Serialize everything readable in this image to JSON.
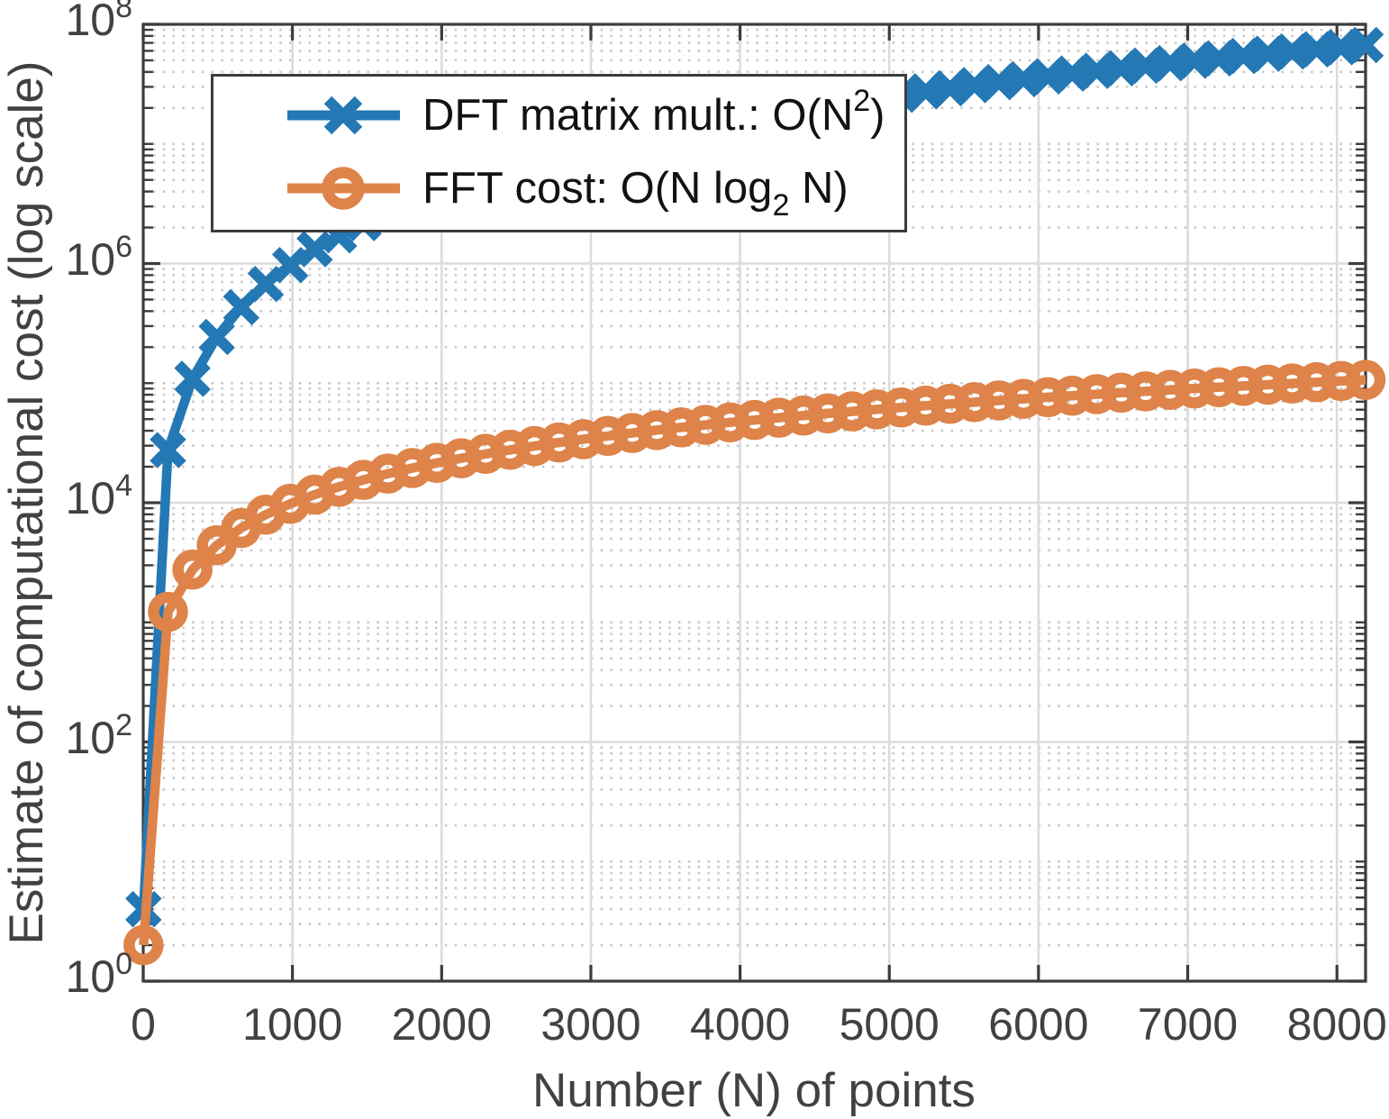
{
  "colors": {
    "dft_blue": "#2478B4",
    "fft_orange": "#DE8349",
    "axis_frame": "#3C3C3C",
    "tick_label": "#414141",
    "grid_major": "#DBDBDB",
    "grid_minor": "#C9C9C9",
    "legend_text": "#121212",
    "background": "#FFFFFF"
  },
  "axes": {
    "xlabel": "Number (N) of points",
    "ylabel": "Estimate of computational cost (log scale)",
    "x_tick_labels": [
      "0",
      "1000",
      "2000",
      "3000",
      "4000",
      "5000",
      "6000",
      "7000",
      "8000"
    ],
    "x_tick_values": [
      0,
      1000,
      2000,
      3000,
      4000,
      5000,
      6000,
      7000,
      8000
    ],
    "y_tick_base": "10",
    "y_tick_exponents": [
      "0",
      "2",
      "4",
      "6",
      "8"
    ],
    "xlim": [
      0,
      8192
    ],
    "ylim_log10": [
      0,
      8
    ],
    "y_scale": "log"
  },
  "legend": {
    "items": [
      {
        "id": "dft",
        "marker": "x",
        "label_pre": "DFT matrix mult.: O(N",
        "label_sup": "2",
        "label_post": ")"
      },
      {
        "id": "fft",
        "marker": "o",
        "label_pre": "FFT cost: O(N log",
        "label_sub": "2",
        "label_post": " N)"
      }
    ]
  },
  "chart_data": {
    "type": "line",
    "title": "",
    "xlabel": "Number (N) of points",
    "ylabel": "Estimate of computational cost (log scale)",
    "x_range": [
      0,
      8192
    ],
    "y_range": [
      1,
      100000000
    ],
    "y_scale": "log",
    "grid": "major solid, log minor dotted",
    "legend_position": "upper-left inside",
    "x": [
      2,
      166,
      330,
      493,
      657,
      821,
      985,
      1149,
      1312,
      1476,
      1640,
      1804,
      1968,
      2131,
      2295,
      2459,
      2623,
      2787,
      2950,
      3114,
      3278,
      3442,
      3606,
      3769,
      3933,
      4097,
      4261,
      4425,
      4588,
      4752,
      4916,
      5080,
      5244,
      5407,
      5571,
      5735,
      5899,
      6063,
      6226,
      6390,
      6554,
      6718,
      6882,
      7045,
      7209,
      7373,
      7537,
      7700,
      7864,
      8028,
      8192
    ],
    "series": [
      {
        "name": "DFT matrix mult.: O(N2)",
        "marker": "x",
        "color": "#2478B4",
        "values": [
          4,
          27556,
          108900,
          243049,
          431649,
          674041,
          970225,
          1320201,
          1721344,
          2178576,
          2689600,
          3254416,
          3873024,
          4541161,
          5267025,
          6046681,
          6880129,
          7767369,
          8702500,
          9696996,
          10745284,
          11847364,
          13003236,
          14205361,
          15468489,
          16785409,
          18156121,
          19580625,
          21049744,
          22581504,
          24167056,
          25806400,
          27499536,
          29235649,
          31036041,
          32890225,
          34798201,
          36759969,
          38763076,
          40832100,
          42954916,
          45131524,
          47361924,
          49632025,
          51969681,
          54361129,
          56806369,
          59290000,
          61842496,
          64448784,
          67108864
        ]
      },
      {
        "name": "FFT cost: O(N log2 N)",
        "marker": "o",
        "color": "#DE8349",
        "values": [
          2,
          1224,
          2761,
          4410,
          6150,
          7948,
          9795,
          11681,
          13590,
          15539,
          17516,
          19514,
          21534,
          23562,
          25622,
          27700,
          29790,
          31895,
          34002,
          36138,
          38285,
          40441,
          42611,
          44775,
          46966,
          49166,
          51374,
          53592,
          55808,
          58041,
          60285,
          62539,
          64796,
          67051,
          69325,
          71607,
          73892,
          76187,
          78475,
          80780,
          83092,
          85410,
          87736,
          90052,
          92389,
          94730,
          97075,
          99414,
          101768,
          104131,
          106496
        ]
      }
    ]
  }
}
